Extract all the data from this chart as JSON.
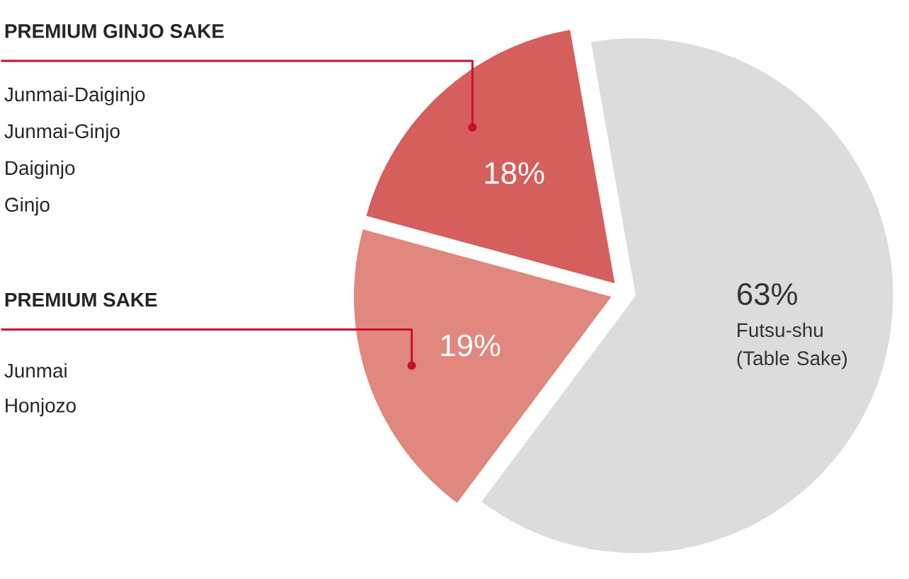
{
  "chart_data": {
    "type": "pie",
    "categories": [
      "PREMIUM GINJO SAKE",
      "PREMIUM SAKE",
      "Futsu-shu (Table Sake)"
    ],
    "values": [
      18,
      19,
      63
    ],
    "value_labels": [
      "18%",
      "19%",
      "63%"
    ],
    "colors": [
      "#d45f5c",
      "#e0877e",
      "#dcdcdd"
    ],
    "annotations": [
      "Junmai-Daiginjo",
      "Junmai-Ginjo",
      "Daiginjo",
      "Ginjo",
      "Junmai",
      "Honjozo"
    ]
  }
}
